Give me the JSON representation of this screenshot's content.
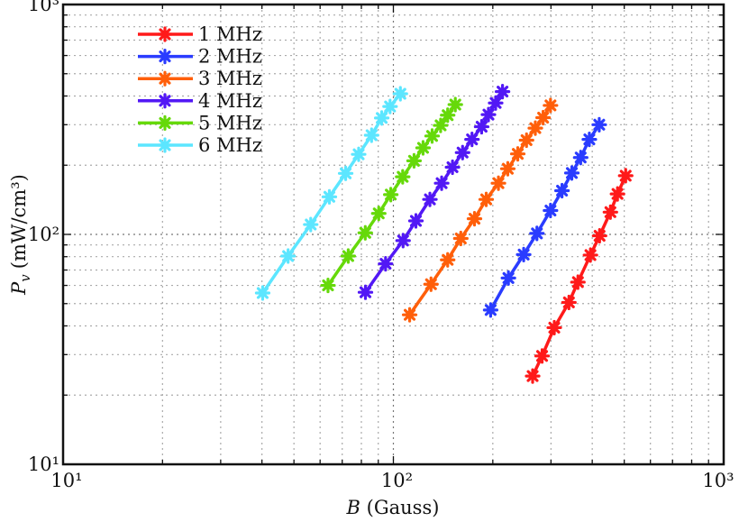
{
  "chart_data": {
    "type": "line",
    "title": "",
    "xlabel": {
      "symbol": "B",
      "unit": "(Gauss)"
    },
    "ylabel": {
      "symbol": "P",
      "subscript": "v",
      "unit": "(mW/cm³)"
    },
    "xscale": "log",
    "yscale": "log",
    "xlim": [
      10,
      1000
    ],
    "ylim": [
      10,
      1000
    ],
    "xticks": [
      {
        "value": 10,
        "label": "10¹"
      },
      {
        "value": 100,
        "label": "10²"
      },
      {
        "value": 1000,
        "label": "10³"
      }
    ],
    "yticks": [
      {
        "value": 10,
        "label": "10¹"
      },
      {
        "value": 100,
        "label": "10²"
      },
      {
        "value": 1000,
        "label": "10³"
      }
    ],
    "grid": true,
    "legend_position": "top-left",
    "marker": "asterisk",
    "series": [
      {
        "name": "1 MHz",
        "color": "#ff1a1a",
        "x": [
          264,
          282,
          307,
          340,
          362,
          395,
          421,
          454,
          477,
          505
        ],
        "y": [
          24.2,
          29.6,
          39.3,
          50.6,
          62,
          81.3,
          98.6,
          125,
          150,
          180
        ]
      },
      {
        "name": "2 MHz",
        "color": "#2a3cff",
        "x": [
          197,
          223,
          248,
          272,
          299,
          324,
          347,
          369,
          392,
          420
        ],
        "y": [
          46.9,
          64.6,
          81.7,
          101,
          127,
          155,
          185,
          216,
          259,
          300
        ]
      },
      {
        "name": "3 MHz",
        "color": "#ff5f0a",
        "x": [
          112,
          130,
          146,
          160,
          176,
          191,
          208,
          222,
          238,
          253,
          269,
          284,
          299
        ],
        "y": [
          44.7,
          60.7,
          77.5,
          96,
          117,
          142,
          167,
          193,
          224,
          257,
          290,
          322,
          364
        ]
      },
      {
        "name": "4 MHz",
        "color": "#5218f5",
        "x": [
          82.3,
          94.7,
          107,
          117,
          129,
          140,
          151,
          162,
          173,
          185,
          194,
          204,
          214
        ],
        "y": [
          56,
          74.5,
          94,
          114.5,
          142,
          167,
          196,
          227,
          259,
          294,
          332,
          373,
          418
        ]
      },
      {
        "name": "5 MHz",
        "color": "#66d90a",
        "x": [
          63.4,
          73,
          82.2,
          90.3,
          98.2,
          106.7,
          115.5,
          123,
          131,
          139,
          146,
          154
        ],
        "y": [
          60,
          80.5,
          101.6,
          123.4,
          149,
          178,
          209,
          238,
          268,
          298,
          330,
          367
        ]
      },
      {
        "name": "6 MHz",
        "color": "#5ce6ff",
        "x": [
          40.2,
          48,
          56.2,
          64,
          71.7,
          78.5,
          85.9,
          92.2,
          97.7,
          105
        ],
        "y": [
          55.6,
          80.5,
          110.4,
          145.7,
          184.3,
          223,
          270,
          321,
          360,
          409
        ]
      }
    ]
  }
}
